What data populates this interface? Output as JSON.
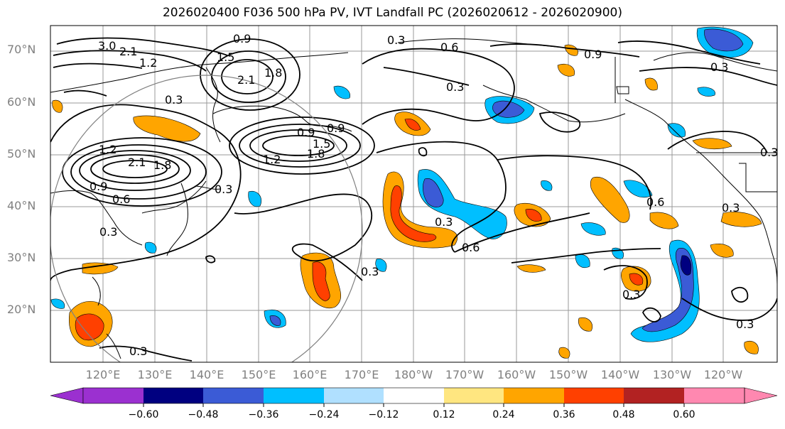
{
  "title": "2026020400 F036 500 hPa PV, IVT Landfall PC (2026020612 - 2026020900)",
  "lat_labels": [
    "70°N",
    "60°N",
    "50°N",
    "40°N",
    "30°N",
    "20°N"
  ],
  "lon_labels": [
    "120°E",
    "130°E",
    "140°E",
    "150°E",
    "160°E",
    "170°E",
    "180°W",
    "170°W",
    "160°W",
    "150°W",
    "140°W",
    "130°W",
    "120°W"
  ],
  "colorbar": {
    "ticks": [
      "−0.60",
      "−0.48",
      "−0.36",
      "−0.24",
      "−0.12",
      "0.12",
      "0.24",
      "0.36",
      "0.48",
      "0.60"
    ],
    "colors": [
      "#9b30d0",
      "#000080",
      "#3b5bd6",
      "#00bfff",
      "#b0e0ff",
      "#ffffff",
      "#ffe680",
      "#ffa500",
      "#ff4000",
      "#b22222",
      "#ff88b0"
    ]
  },
  "contour_labels": [
    "3.0",
    "2.1",
    "1.2",
    "0.3",
    "0.9",
    "1.5",
    "2.1",
    "1.8",
    "0.3",
    "0.6",
    "0.9",
    "0.3",
    "0.9",
    "1.2",
    "2.1",
    "1.8",
    "0.9",
    "0.6",
    "1.5",
    "0.9",
    "1.8",
    "1.2",
    "0.3",
    "0.3",
    "0.6",
    "0.3",
    "0.3",
    "0.6",
    "0.3",
    "0.3",
    "0.3",
    "0.3",
    "0.3",
    "0.3"
  ],
  "colors": {
    "contour": "#000000",
    "grid": "#999999",
    "coast": "#000000",
    "circle": "#808080"
  }
}
